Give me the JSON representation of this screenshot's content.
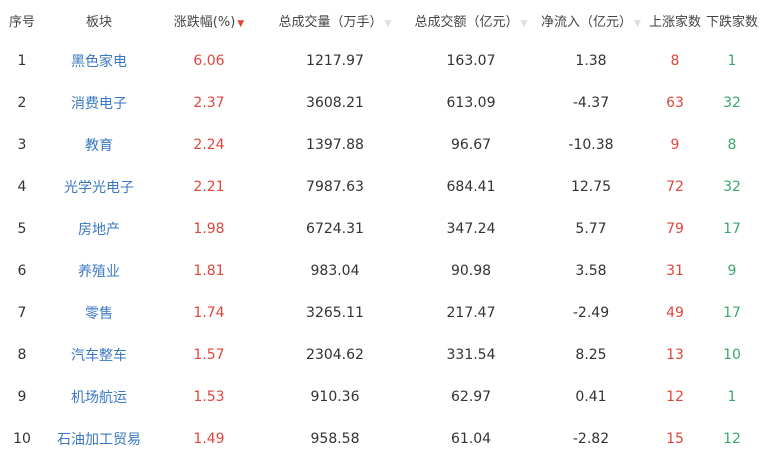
{
  "headers": [
    "序号",
    "板块",
    "涨跌幅(%)",
    "总成交量（万手）",
    "总成交额（亿元）",
    "净流入（亿元）",
    "上涨家数",
    "下跌家数"
  ],
  "sort_icons": {
    "active": "▼",
    "inactive": "▼"
  },
  "colors": {
    "up": "#e0463c",
    "down": "#3aa76d",
    "link": "#3a78c3"
  },
  "rows": [
    {
      "rank": "1",
      "name": "黑色家电",
      "change": "6.06",
      "volume": "1217.97",
      "amount": "163.07",
      "inflow": "1.38",
      "up": "8",
      "down": "1"
    },
    {
      "rank": "2",
      "name": "消费电子",
      "change": "2.37",
      "volume": "3608.21",
      "amount": "613.09",
      "inflow": "-4.37",
      "up": "63",
      "down": "32"
    },
    {
      "rank": "3",
      "name": "教育",
      "change": "2.24",
      "volume": "1397.88",
      "amount": "96.67",
      "inflow": "-10.38",
      "up": "9",
      "down": "8"
    },
    {
      "rank": "4",
      "name": "光学光电子",
      "change": "2.21",
      "volume": "7987.63",
      "amount": "684.41",
      "inflow": "12.75",
      "up": "72",
      "down": "32"
    },
    {
      "rank": "5",
      "name": "房地产",
      "change": "1.98",
      "volume": "6724.31",
      "amount": "347.24",
      "inflow": "5.77",
      "up": "79",
      "down": "17"
    },
    {
      "rank": "6",
      "name": "养殖业",
      "change": "1.81",
      "volume": "983.04",
      "amount": "90.98",
      "inflow": "3.58",
      "up": "31",
      "down": "9"
    },
    {
      "rank": "7",
      "name": "零售",
      "change": "1.74",
      "volume": "3265.11",
      "amount": "217.47",
      "inflow": "-2.49",
      "up": "49",
      "down": "17"
    },
    {
      "rank": "8",
      "name": "汽车整车",
      "change": "1.57",
      "volume": "2304.62",
      "amount": "331.54",
      "inflow": "8.25",
      "up": "13",
      "down": "10"
    },
    {
      "rank": "9",
      "name": "机场航运",
      "change": "1.53",
      "volume": "910.36",
      "amount": "62.97",
      "inflow": "0.41",
      "up": "12",
      "down": "1"
    },
    {
      "rank": "10",
      "name": "石油加工贸易",
      "change": "1.49",
      "volume": "958.58",
      "amount": "61.04",
      "inflow": "-2.82",
      "up": "15",
      "down": "12"
    }
  ]
}
